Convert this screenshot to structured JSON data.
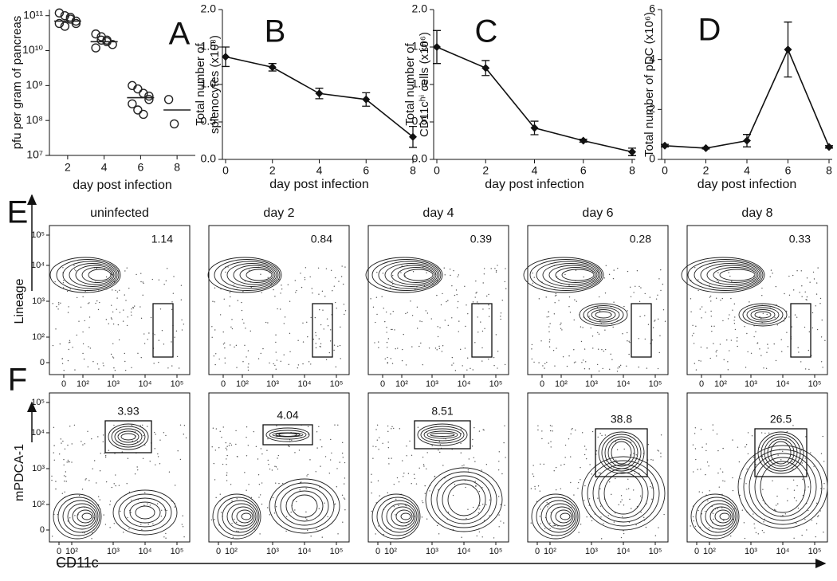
{
  "chart_data": [
    {
      "type": "dot",
      "panel_label": "A",
      "y_label": [
        "pfu per gram of pancreas"
      ],
      "x_label": "day post infection",
      "categories": [
        "2",
        "4",
        "6",
        "8"
      ],
      "points": [
        [
          120000000000,
          100000000000,
          80000000000,
          70000000000,
          60000000000,
          50000000000,
          90000000000,
          60000000000
        ],
        [
          30000000000,
          25000000000,
          20000000000,
          15000000000,
          12000000000,
          20000000000,
          18000000000
        ],
        [
          1000000000,
          800000000,
          600000000,
          400000000,
          300000000,
          200000000,
          150000000,
          500000000
        ],
        [
          400000000,
          80000000
        ]
      ],
      "means": [
        70000000000,
        18000000000,
        450000000,
        200000000
      ],
      "log_scale": true,
      "ylim": [
        10000000,
        150000000000
      ],
      "yticks": [
        {
          "value": 10000000,
          "label": "10⁷"
        },
        {
          "value": 100000000,
          "label": "10⁸"
        },
        {
          "value": 1000000000,
          "label": "10⁹"
        },
        {
          "value": 10000000000,
          "label": "10¹⁰"
        },
        {
          "value": 100000000000,
          "label": "10¹¹"
        }
      ],
      "color": "#222222"
    },
    {
      "type": "line",
      "panel_label": "B",
      "y_label": [
        "Total number of",
        "splenocytes (x10⁸)"
      ],
      "x_label": "day post infection",
      "x": [
        0,
        2,
        4,
        6,
        8
      ],
      "values": [
        1.37,
        1.23,
        0.88,
        0.8,
        0.3
      ],
      "errors": [
        0.13,
        0.05,
        0.07,
        0.09,
        0.14
      ],
      "xlim": [
        0,
        8
      ],
      "xticks": [
        0,
        2,
        4,
        6,
        8
      ],
      "ylim": [
        0,
        2
      ],
      "yticks": [
        {
          "value": 0,
          "label": "0.0"
        },
        0.5,
        {
          "value": 1,
          "label": "1.0"
        },
        1.5,
        {
          "value": 2,
          "label": "2.0"
        }
      ],
      "color": "#111111"
    },
    {
      "type": "line",
      "panel_label": "C",
      "y_label": [
        "Total number of",
        "CD11cʰⁱ cells (x10⁶)"
      ],
      "x_label": "day post infection",
      "x": [
        0,
        2,
        4,
        6,
        8
      ],
      "values": [
        1.5,
        1.22,
        0.42,
        0.25,
        0.1
      ],
      "errors": [
        0.22,
        0.1,
        0.09,
        0.02,
        0.05
      ],
      "xlim": [
        0,
        8
      ],
      "xticks": [
        0,
        2,
        4,
        6,
        8
      ],
      "ylim": [
        0,
        2
      ],
      "yticks": [
        {
          "value": 0,
          "label": "0.0"
        },
        0.5,
        {
          "value": 1,
          "label": "1.0"
        },
        1.5,
        {
          "value": 2,
          "label": "2.0"
        }
      ],
      "color": "#111111"
    },
    {
      "type": "line",
      "panel_label": "D",
      "y_label": [
        "Total number of pDC (x10⁶)"
      ],
      "x_label": "day post infection",
      "x": [
        0,
        2,
        4,
        6,
        8
      ],
      "values": [
        0.55,
        0.45,
        0.75,
        4.4,
        0.5
      ],
      "errors": [
        0.05,
        0.03,
        0.25,
        1.1,
        0.05
      ],
      "xlim": [
        0,
        8
      ],
      "xticks": [
        0,
        2,
        4,
        6,
        8
      ],
      "ylim": [
        0,
        6
      ],
      "yticks": [
        0,
        2,
        4,
        6
      ],
      "color": "#111111"
    }
  ],
  "flow": {
    "columns": [
      "uninfected",
      "day 2",
      "day 4",
      "day 6",
      "day 8"
    ],
    "x_label": "CD11c",
    "x_ticks": [
      "0",
      "10²",
      "10³",
      "10⁴",
      "10⁵"
    ],
    "y_ticks": [
      "10⁵",
      "10⁴",
      "10³",
      "10²",
      "0"
    ],
    "rows": [
      {
        "panel_label": "E",
        "y_label": "Lineage",
        "gates": [
          "1.14",
          "0.84",
          "0.39",
          "0.28",
          "0.33"
        ]
      },
      {
        "panel_label": "F",
        "y_label": "mPDCA-1",
        "gates": [
          "3.93",
          "4.04",
          "8.51",
          "38.8",
          "26.5"
        ]
      }
    ]
  }
}
